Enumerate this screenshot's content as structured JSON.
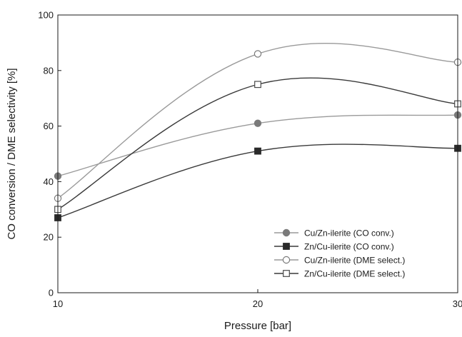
{
  "chart_data": {
    "type": "line",
    "title": "",
    "xlabel": "Pressure [bar]",
    "ylabel": "CO conversion / DME selectivity [%]",
    "x": [
      10,
      20,
      30
    ],
    "xlim": [
      10,
      30
    ],
    "ylim": [
      0,
      100
    ],
    "xticks": [
      10,
      20,
      30
    ],
    "yticks": [
      0,
      20,
      40,
      60,
      80,
      100
    ],
    "grid": false,
    "legend_position": "bottom-right",
    "series": [
      {
        "name": "Cu/Zn-ilerite (CO conv.)",
        "values": [
          42,
          61,
          64
        ],
        "marker": "circle",
        "filled": true,
        "line_color": "#9a9a9a",
        "marker_color": "#7a7a7a"
      },
      {
        "name": "Zn/Cu-ilerite (CO conv.)",
        "values": [
          27,
          51,
          52
        ],
        "marker": "square",
        "filled": true,
        "line_color": "#3a3a3a",
        "marker_color": "#2a2a2a"
      },
      {
        "name": "Cu/Zn-ilerite (DME select.)",
        "values": [
          34,
          86,
          83
        ],
        "marker": "circle",
        "filled": false,
        "line_color": "#9a9a9a",
        "marker_color": "#7a7a7a"
      },
      {
        "name": "Zn/Cu-ilerite (DME select.)",
        "values": [
          30,
          75,
          68
        ],
        "marker": "square",
        "filled": false,
        "line_color": "#3a3a3a",
        "marker_color": "#4a4a4a"
      }
    ]
  }
}
